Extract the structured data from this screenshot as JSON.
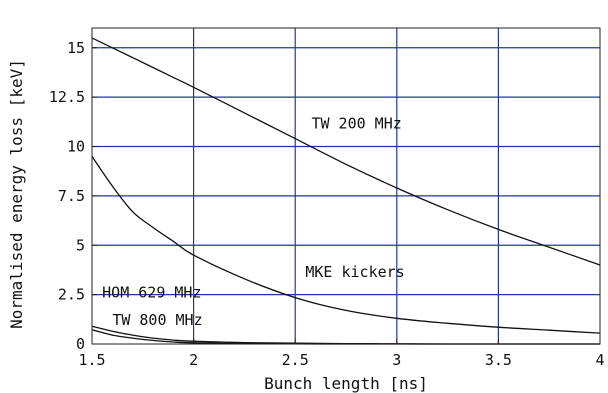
{
  "chart_data": {
    "type": "line",
    "title": "",
    "xlabel": "Bunch length [ns]",
    "ylabel": "Normalised energy loss [keV]",
    "xlim": [
      1.5,
      4
    ],
    "ylim": [
      0,
      16
    ],
    "x_ticks": [
      1.5,
      2,
      2.5,
      3,
      3.5,
      4
    ],
    "x_tick_labels": [
      "1.5",
      "2",
      "2.5",
      "3",
      "3.5",
      "4"
    ],
    "y_ticks": [
      0,
      2.5,
      5,
      7.5,
      10,
      12.5,
      15
    ],
    "y_tick_labels": [
      "0",
      "2.5",
      "5",
      "7.5",
      "10",
      "12.5",
      "15"
    ],
    "grid": true,
    "grid_color": "#1f3a93",
    "legend": "none",
    "x": [
      1.5,
      1.6,
      1.7,
      1.8,
      1.9,
      2.0,
      2.25,
      2.5,
      2.75,
      3.0,
      3.25,
      3.5,
      3.75,
      4.0
    ],
    "series": [
      {
        "values": [
          15.5,
          15.0,
          14.5,
          14.0,
          13.5,
          13.0,
          11.7,
          10.4,
          9.1,
          7.9,
          6.8,
          5.8,
          4.9,
          4.0
        ]
      },
      {
        "values": [
          9.5,
          8.0,
          6.7,
          5.9,
          5.2,
          4.5,
          3.3,
          2.35,
          1.7,
          1.3,
          1.05,
          0.85,
          0.7,
          0.55
        ]
      },
      {
        "values": [
          0.9,
          0.65,
          0.45,
          0.3,
          0.2,
          0.14,
          0.07,
          0.04,
          0.02,
          0.01,
          0.0,
          0.0,
          0.0,
          0.0
        ]
      },
      {
        "values": [
          0.72,
          0.45,
          0.3,
          0.18,
          0.1,
          0.06,
          0.02,
          0.01,
          0.0,
          0.0,
          0.0,
          0.0,
          0.0,
          0.0
        ]
      }
    ],
    "annotations": [
      {
        "text": "TW 200 MHz",
        "x": 2.58,
        "y": 10.9
      },
      {
        "text": "MKE kickers",
        "x": 2.55,
        "y": 3.4
      },
      {
        "text": "HOM 629 MHz",
        "x": 1.55,
        "y": 2.35
      },
      {
        "text": "TW 800 MHz",
        "x": 1.6,
        "y": 0.95
      }
    ]
  }
}
